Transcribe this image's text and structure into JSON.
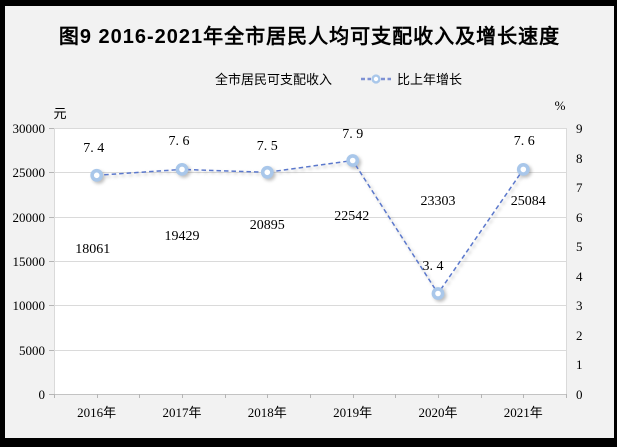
{
  "header": {
    "title": "图9 2016-2021年全市居民人均可支配收入及增长速度"
  },
  "chart_data": {
    "type": "line",
    "title": "图9 2016-2021年全市居民人均可支配收入及增长速度",
    "categories": [
      "2016年",
      "2017年",
      "2018年",
      "2019年",
      "2020年",
      "2021年"
    ],
    "series": [
      {
        "name": "全市居民可支配收入",
        "axis": "left",
        "style": "labels-only",
        "values": [
          18061,
          19429,
          20895,
          22542,
          23303,
          25084
        ],
        "labels": [
          "18061",
          "19429",
          "20895",
          "22542",
          "23303",
          "25084"
        ],
        "label_dx": [
          -4,
          0,
          0,
          -1,
          0,
          5
        ],
        "label_dy": [
          16,
          15,
          17,
          23,
          15,
          30
        ]
      },
      {
        "name": "比上年增长",
        "axis": "right",
        "style": "dashed-line-circle-markers",
        "values": [
          7.4,
          7.6,
          7.5,
          7.9,
          3.4,
          7.6
        ],
        "labels": [
          "7. 4",
          "7. 6",
          "7. 5",
          "7. 9",
          "3. 4",
          "7. 6"
        ],
        "label_dx": [
          -3,
          -3,
          0,
          0,
          -5,
          1
        ],
        "label_dy": [
          -26,
          -27,
          -25,
          -26,
          -27,
          -27
        ]
      }
    ],
    "y_left": {
      "unit": "元",
      "min": 0,
      "max": 30000,
      "tick_step": 5000,
      "ticks": [
        0,
        5000,
        10000,
        15000,
        20000,
        25000,
        30000
      ]
    },
    "y_right": {
      "unit": "%",
      "min": 0,
      "max": 9,
      "tick_step": 1,
      "ticks": [
        0,
        1,
        2,
        3,
        4,
        5,
        6,
        7,
        8,
        9
      ]
    },
    "grid": true,
    "legend_position": "top",
    "colors": {
      "line": "#5b78cc",
      "marker_ring": "#a9c7ea",
      "marker_fill": "#ffffff",
      "gridline": "#dadada",
      "axis": "#c3c3c3",
      "background": "#f2f2f2",
      "plot_background": "#ffffff",
      "frame": "#000000",
      "text": "#000000"
    }
  }
}
